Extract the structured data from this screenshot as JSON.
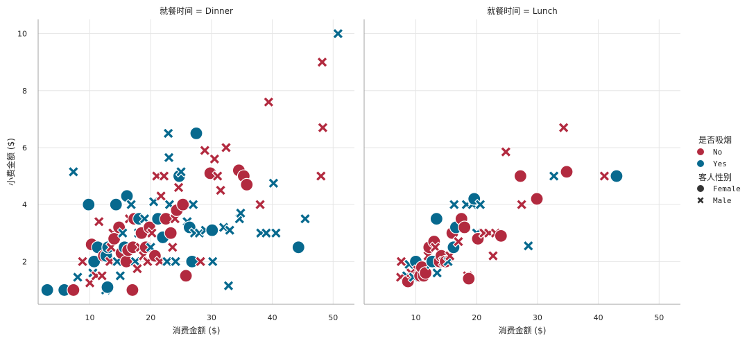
{
  "chart_data": {
    "type": "scatter",
    "xlabel": "消费金额 ($)",
    "ylabel": "小费金额 ($)",
    "xlim": [
      1.5,
      53.5
    ],
    "ylim": [
      0.5,
      10.5
    ],
    "xticks": [
      10,
      20,
      30,
      40,
      50
    ],
    "yticks": [
      2,
      4,
      6,
      8,
      10
    ],
    "grid": true,
    "colors": {
      "No": "#b22a3f",
      "Yes": "#07698e"
    },
    "legend": {
      "placement": "right",
      "hue_title": "是否吸烟",
      "hue_items": [
        "No",
        "Yes"
      ],
      "style_title": "客人性别",
      "style_items": [
        "Female",
        "Male"
      ]
    },
    "facets": [
      {
        "title": "就餐时间 = Dinner",
        "points": [
          [
            3,
            1,
            "Yes",
            "F"
          ],
          [
            5.8,
            1,
            "Yes",
            "F"
          ],
          [
            7.3,
            1,
            "No",
            "F"
          ],
          [
            7.3,
            5.15,
            "Yes",
            "M"
          ],
          [
            8,
            1.45,
            "Yes",
            "M"
          ],
          [
            8.8,
            2,
            "No",
            "M"
          ],
          [
            9.8,
            4,
            "Yes",
            "F"
          ],
          [
            10,
            1.25,
            "No",
            "M"
          ],
          [
            10.3,
            2.6,
            "No",
            "F"
          ],
          [
            10.5,
            1.6,
            "Yes",
            "M"
          ],
          [
            10.7,
            2,
            "Yes",
            "F"
          ],
          [
            11,
            1.5,
            "No",
            "M"
          ],
          [
            11.3,
            2.5,
            "Yes",
            "F"
          ],
          [
            11.5,
            3.4,
            "No",
            "M"
          ],
          [
            12,
            1.5,
            "No",
            "M"
          ],
          [
            12.3,
            2.2,
            "No",
            "F"
          ],
          [
            12.6,
            1,
            "Yes",
            "M"
          ],
          [
            12.7,
            2.2,
            "Yes",
            "F"
          ],
          [
            12.9,
            1.1,
            "Yes",
            "F"
          ],
          [
            13,
            2.5,
            "Yes",
            "F"
          ],
          [
            13.3,
            2,
            "No",
            "M"
          ],
          [
            13.5,
            2.5,
            "No",
            "M"
          ],
          [
            13.8,
            3,
            "No",
            "M"
          ],
          [
            14,
            2.8,
            "No",
            "F"
          ],
          [
            14.3,
            4,
            "Yes",
            "F"
          ],
          [
            14.5,
            2,
            "Yes",
            "M"
          ],
          [
            14.8,
            3.2,
            "No",
            "F"
          ],
          [
            15,
            1.5,
            "Yes",
            "M"
          ],
          [
            15.2,
            2.3,
            "No",
            "F"
          ],
          [
            15.4,
            3,
            "Yes",
            "M"
          ],
          [
            15.7,
            2.5,
            "Yes",
            "F"
          ],
          [
            16,
            2,
            "No",
            "F"
          ],
          [
            16.1,
            4.3,
            "Yes",
            "F"
          ],
          [
            16.3,
            2.4,
            "No",
            "F"
          ],
          [
            16.5,
            3.5,
            "No",
            "M"
          ],
          [
            16.8,
            4,
            "Yes",
            "M"
          ],
          [
            17,
            1,
            "No",
            "F"
          ],
          [
            17.1,
            2.5,
            "No",
            "F"
          ],
          [
            17.3,
            3.5,
            "No",
            "F"
          ],
          [
            17.5,
            2,
            "Yes",
            "M"
          ],
          [
            17.8,
            1.75,
            "No",
            "M"
          ],
          [
            18,
            3,
            "Yes",
            "M"
          ],
          [
            18.1,
            3.5,
            "Yes",
            "F"
          ],
          [
            18.3,
            2.5,
            "No",
            "M"
          ],
          [
            18.5,
            3,
            "No",
            "F"
          ],
          [
            18.8,
            2.2,
            "No",
            "M"
          ],
          [
            19,
            3.5,
            "Yes",
            "M"
          ],
          [
            19.2,
            2.5,
            "No",
            "F"
          ],
          [
            19.5,
            2,
            "No",
            "M"
          ],
          [
            19.8,
            3.2,
            "No",
            "F"
          ],
          [
            20,
            2.5,
            "Yes",
            "M"
          ],
          [
            20.2,
            3,
            "No",
            "M"
          ],
          [
            20.5,
            4.1,
            "Yes",
            "M"
          ],
          [
            20.7,
            2.2,
            "No",
            "F"
          ],
          [
            21,
            5,
            "No",
            "M"
          ],
          [
            21.2,
            3.5,
            "Yes",
            "F"
          ],
          [
            21.5,
            2,
            "No",
            "M"
          ],
          [
            21.7,
            4.3,
            "No",
            "M"
          ],
          [
            22,
            2.85,
            "Yes",
            "F"
          ],
          [
            22.2,
            5,
            "No",
            "M"
          ],
          [
            22.5,
            3.5,
            "No",
            "F"
          ],
          [
            22.7,
            2,
            "Yes",
            "M"
          ],
          [
            22.9,
            6.5,
            "Yes",
            "M"
          ],
          [
            23,
            5.65,
            "Yes",
            "M"
          ],
          [
            23.1,
            4,
            "Yes",
            "M"
          ],
          [
            23.3,
            3,
            "No",
            "F"
          ],
          [
            23.6,
            2.5,
            "No",
            "M"
          ],
          [
            24,
            3.5,
            "No",
            "M"
          ],
          [
            24.1,
            2,
            "Yes",
            "M"
          ],
          [
            24.3,
            3.8,
            "No",
            "F"
          ],
          [
            24.6,
            4.6,
            "No",
            "M"
          ],
          [
            24.7,
            5,
            "Yes",
            "F"
          ],
          [
            25,
            5.15,
            "Yes",
            "M"
          ],
          [
            25.3,
            4,
            "No",
            "F"
          ],
          [
            25.8,
            1.5,
            "No",
            "F"
          ],
          [
            26,
            3.4,
            "Yes",
            "M"
          ],
          [
            26.4,
            3.2,
            "Yes",
            "F"
          ],
          [
            26.8,
            2,
            "Yes",
            "F"
          ],
          [
            27,
            4,
            "Yes",
            "M"
          ],
          [
            27.2,
            3,
            "Yes",
            "M"
          ],
          [
            27.5,
            6.5,
            "Yes",
            "F"
          ],
          [
            28,
            3,
            "Yes",
            "M"
          ],
          [
            28.2,
            2,
            "No",
            "M"
          ],
          [
            28.9,
            5.9,
            "No",
            "M"
          ],
          [
            29,
            3.1,
            "Yes",
            "M"
          ],
          [
            29.8,
            5.1,
            "No",
            "F"
          ],
          [
            30.1,
            3.1,
            "Yes",
            "F"
          ],
          [
            30.2,
            2,
            "Yes",
            "M"
          ],
          [
            30.5,
            5.6,
            "No",
            "M"
          ],
          [
            31,
            5,
            "No",
            "M"
          ],
          [
            31.5,
            4.5,
            "No",
            "M"
          ],
          [
            32,
            3.2,
            "Yes",
            "M"
          ],
          [
            32.4,
            6,
            "No",
            "M"
          ],
          [
            32.8,
            1.15,
            "Yes",
            "M"
          ],
          [
            33,
            3.1,
            "Yes",
            "M"
          ],
          [
            34.5,
            5.2,
            "No",
            "F"
          ],
          [
            34.6,
            3.5,
            "Yes",
            "M"
          ],
          [
            34.8,
            3.7,
            "Yes",
            "M"
          ],
          [
            35.3,
            5,
            "No",
            "F"
          ],
          [
            35.8,
            4.7,
            "No",
            "F"
          ],
          [
            38,
            4,
            "No",
            "M"
          ],
          [
            38.1,
            3,
            "Yes",
            "M"
          ],
          [
            39,
            3,
            "Yes",
            "M"
          ],
          [
            39.4,
            7.6,
            "No",
            "M"
          ],
          [
            40.2,
            4.75,
            "Yes",
            "M"
          ],
          [
            40.6,
            3,
            "Yes",
            "M"
          ],
          [
            44.3,
            2.5,
            "Yes",
            "F"
          ],
          [
            45.4,
            3.5,
            "Yes",
            "M"
          ],
          [
            48,
            5,
            "No",
            "M"
          ],
          [
            48.2,
            9,
            "No",
            "M"
          ],
          [
            48.3,
            6.7,
            "No",
            "M"
          ],
          [
            50.8,
            10,
            "Yes",
            "M"
          ]
        ]
      },
      {
        "title": "就餐时间 = Lunch",
        "points": [
          [
            7.5,
            1.45,
            "No",
            "M"
          ],
          [
            7.6,
            2,
            "No",
            "M"
          ],
          [
            8.5,
            1.5,
            "Yes",
            "M"
          ],
          [
            8.7,
            1.3,
            "No",
            "F"
          ],
          [
            8.9,
            1.9,
            "Yes",
            "M"
          ],
          [
            9.2,
            1.6,
            "No",
            "M"
          ],
          [
            9.6,
            1.45,
            "Yes",
            "M"
          ],
          [
            10,
            2,
            "Yes",
            "F"
          ],
          [
            10.3,
            1.7,
            "No",
            "M"
          ],
          [
            10.7,
            1.5,
            "No",
            "F"
          ],
          [
            11,
            1.8,
            "No",
            "F"
          ],
          [
            11.3,
            1.5,
            "No",
            "F"
          ],
          [
            11.6,
            1.6,
            "No",
            "F"
          ],
          [
            12,
            2.2,
            "No",
            "M"
          ],
          [
            12.2,
            2.5,
            "No",
            "F"
          ],
          [
            12.5,
            1.9,
            "Yes",
            "M"
          ],
          [
            12.7,
            2,
            "Yes",
            "F"
          ],
          [
            13,
            2.7,
            "No",
            "F"
          ],
          [
            13.2,
            2.5,
            "No",
            "M"
          ],
          [
            13.4,
            3.5,
            "Yes",
            "F"
          ],
          [
            13.5,
            1.6,
            "Yes",
            "M"
          ],
          [
            13.9,
            2,
            "No",
            "F"
          ],
          [
            14.2,
            2.2,
            "No",
            "F"
          ],
          [
            14.5,
            2,
            "No",
            "M"
          ],
          [
            14.9,
            2,
            "No",
            "F"
          ],
          [
            15.3,
            2,
            "Yes",
            "M"
          ],
          [
            15.6,
            2.2,
            "No",
            "M"
          ],
          [
            16,
            3,
            "No",
            "F"
          ],
          [
            16.2,
            2.5,
            "Yes",
            "F"
          ],
          [
            16.3,
            4,
            "Yes",
            "M"
          ],
          [
            16.6,
            3.2,
            "Yes",
            "F"
          ],
          [
            17,
            2.7,
            "No",
            "M"
          ],
          [
            17.5,
            3.5,
            "No",
            "F"
          ],
          [
            18,
            3.2,
            "No",
            "F"
          ],
          [
            18.3,
            4,
            "Yes",
            "M"
          ],
          [
            18.5,
            1.5,
            "No",
            "M"
          ],
          [
            18.7,
            1.4,
            "No",
            "F"
          ],
          [
            19.3,
            4,
            "Yes",
            "M"
          ],
          [
            19.6,
            4.2,
            "Yes",
            "F"
          ],
          [
            20,
            3,
            "Yes",
            "M"
          ],
          [
            20.2,
            2.8,
            "No",
            "F"
          ],
          [
            20.6,
            4,
            "Yes",
            "M"
          ],
          [
            21.2,
            3,
            "No",
            "M"
          ],
          [
            22,
            3,
            "No",
            "M"
          ],
          [
            22.7,
            2.2,
            "No",
            "M"
          ],
          [
            23.1,
            3,
            "No",
            "M"
          ],
          [
            24,
            2.9,
            "No",
            "F"
          ],
          [
            24.8,
            5.85,
            "No",
            "M"
          ],
          [
            27.2,
            5,
            "No",
            "F"
          ],
          [
            27.4,
            4,
            "No",
            "M"
          ],
          [
            28.5,
            2.55,
            "Yes",
            "M"
          ],
          [
            29.9,
            4.2,
            "No",
            "F"
          ],
          [
            32.7,
            5,
            "Yes",
            "M"
          ],
          [
            34.3,
            6.7,
            "No",
            "M"
          ],
          [
            34.8,
            5.15,
            "No",
            "F"
          ],
          [
            41,
            5,
            "No",
            "M"
          ],
          [
            43,
            5,
            "Yes",
            "F"
          ]
        ]
      }
    ]
  }
}
